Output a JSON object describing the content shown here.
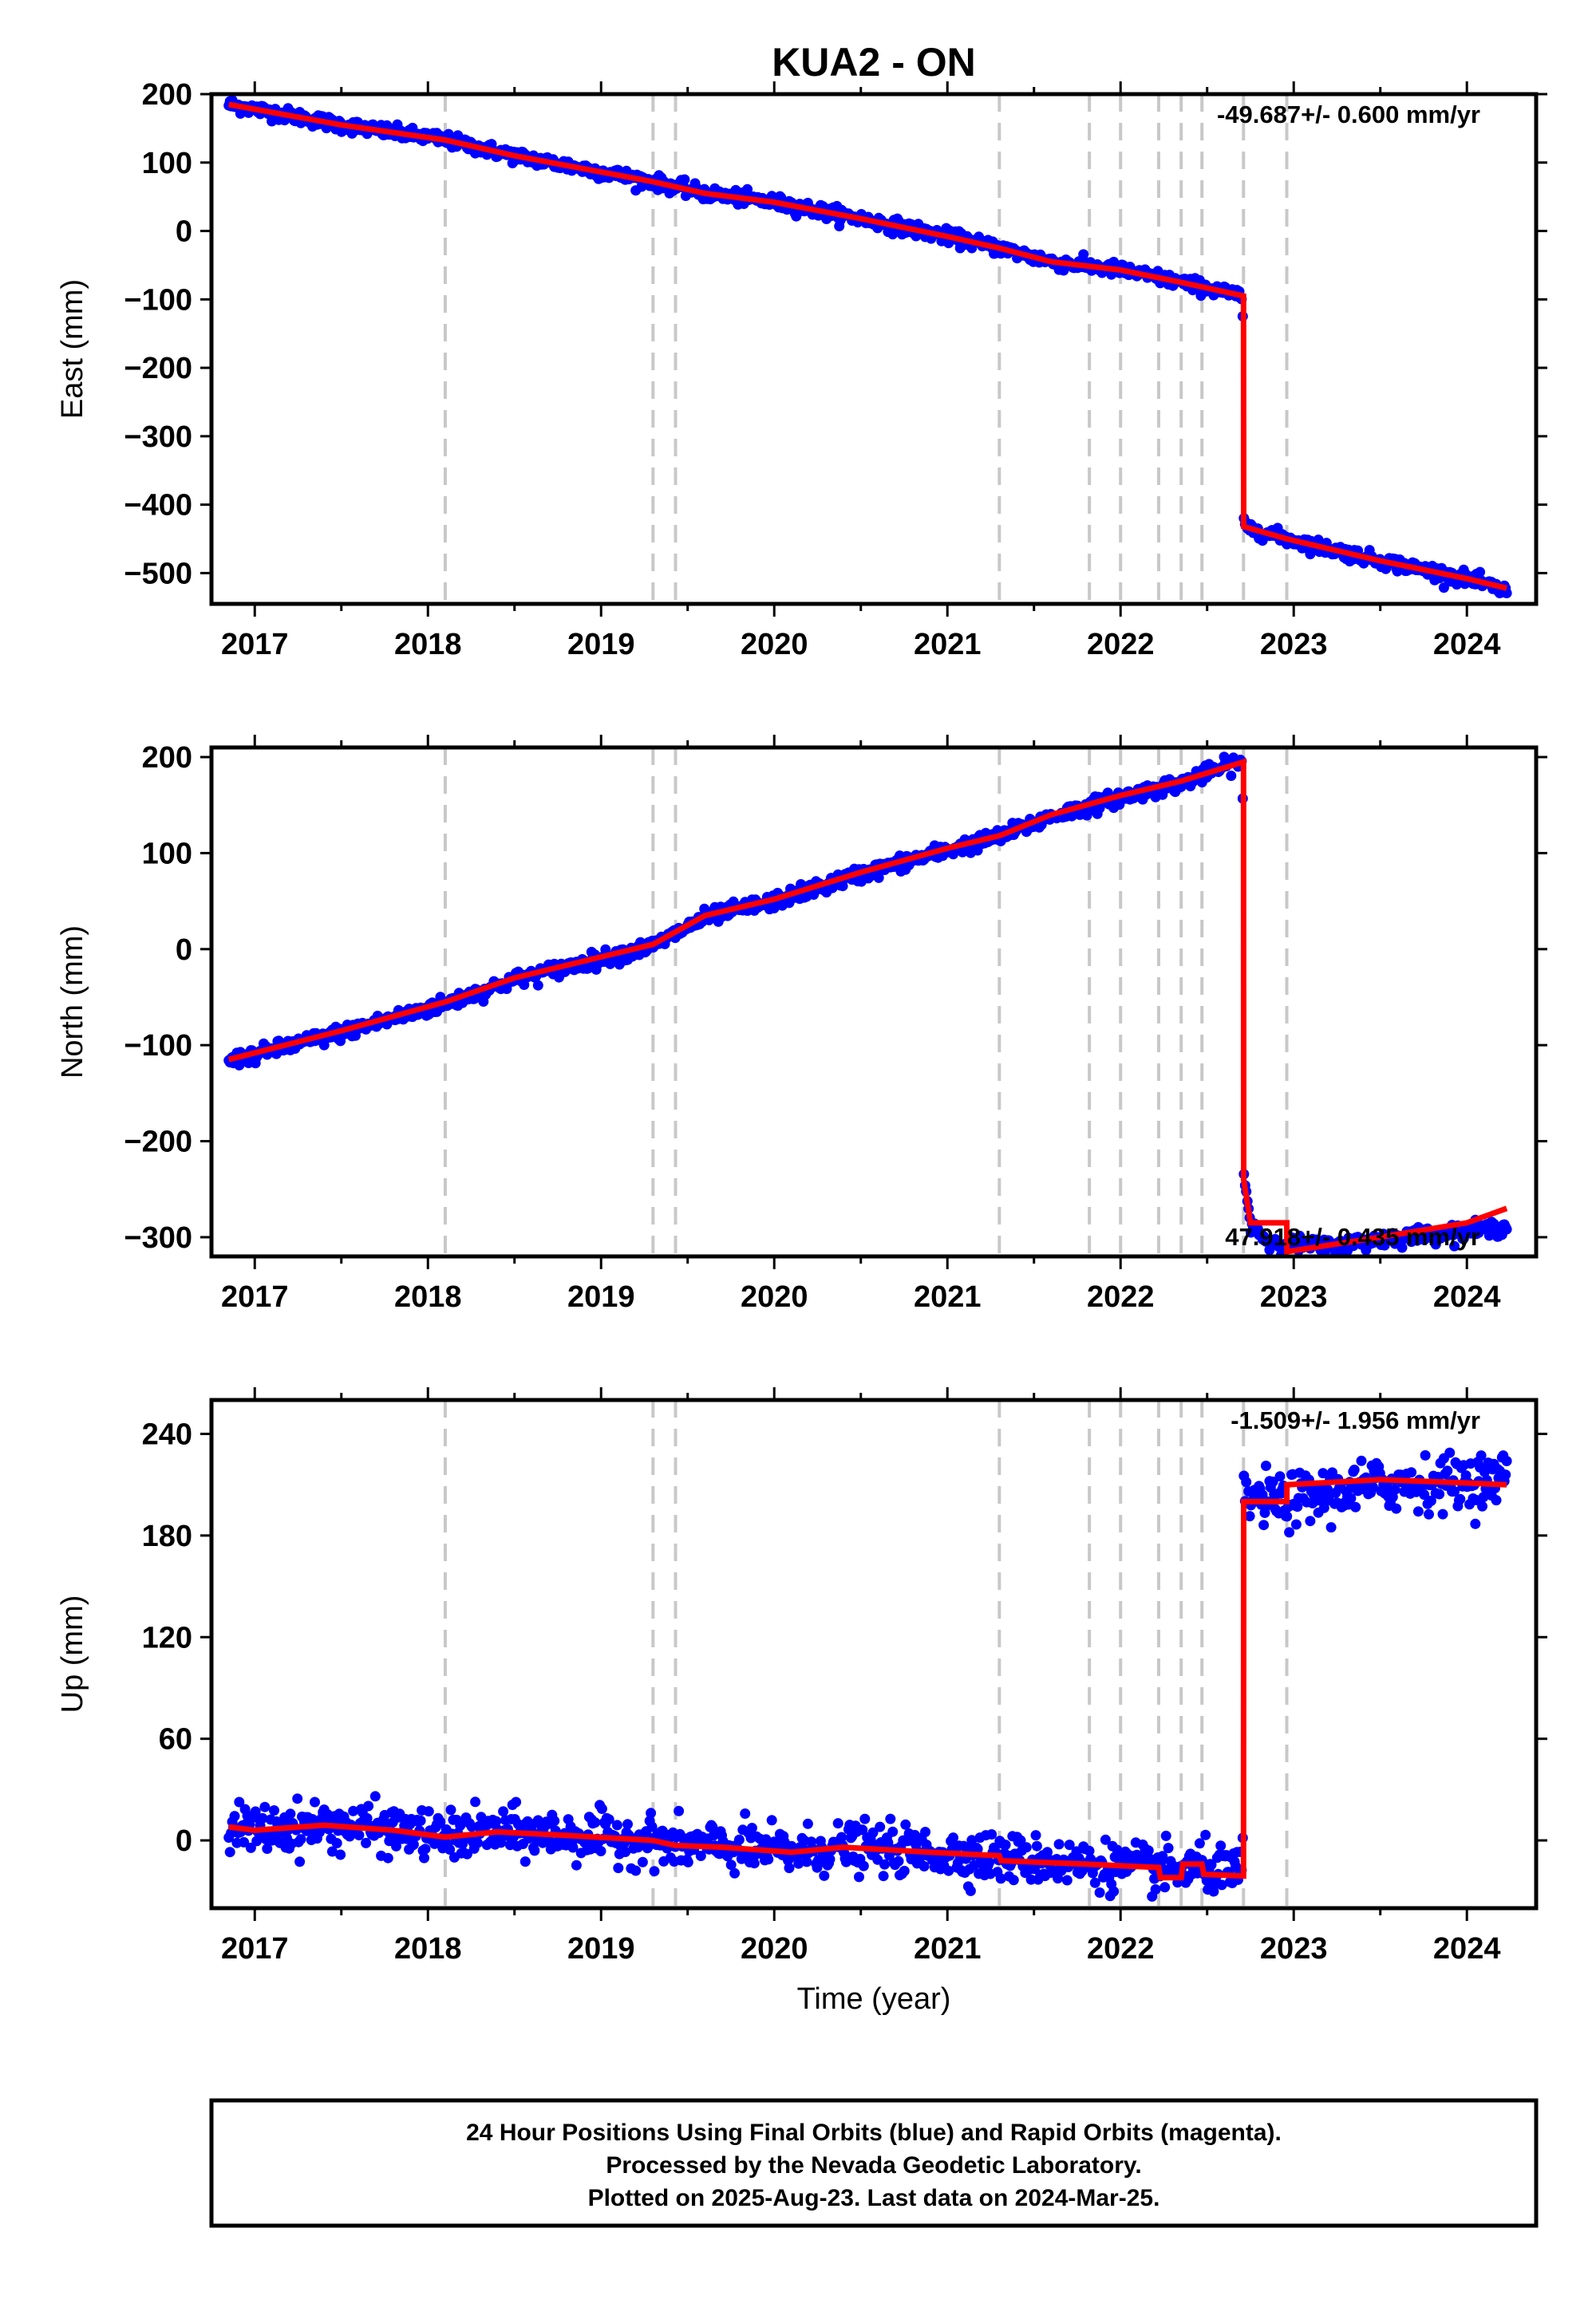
{
  "title": "KUA2 - ON",
  "xlabel": "Time (year)",
  "footer": {
    "line1": "24 Hour Positions Using Final Orbits (blue) and Rapid Orbits (magenta).",
    "line2": "Processed by the Nevada Geodetic Laboratory.",
    "line3": "Plotted on 2025-Aug-23. Last data on 2024-Mar-25."
  },
  "colors": {
    "data": "#0000ff",
    "model": "#ff0000",
    "offset_line": "#c8c8c8",
    "frame": "#000000"
  },
  "chart_data": [
    {
      "type": "scatter",
      "ylabel": "East (mm)",
      "rate_text": "-49.687+/- 0.600 mm/yr",
      "xlim": [
        2016.75,
        2024.4
      ],
      "ylim": [
        -545,
        200
      ],
      "yticks": [
        200,
        100,
        0,
        -100,
        -200,
        -300,
        -400,
        -500
      ],
      "xticks": [
        2017,
        2018,
        2019,
        2020,
        2021,
        2022,
        2023,
        2024
      ],
      "offset_lines": [
        2018.1,
        2019.3,
        2019.43,
        2021.3,
        2021.82,
        2022.0,
        2022.22,
        2022.35,
        2022.47,
        2022.71,
        2022.96
      ],
      "model": [
        [
          2016.85,
          185
        ],
        [
          2017.5,
          155
        ],
        [
          2018.1,
          133
        ],
        [
          2018.5,
          110
        ],
        [
          2019.3,
          72
        ],
        [
          2019.6,
          55
        ],
        [
          2020.0,
          42
        ],
        [
          2020.5,
          18
        ],
        [
          2021.0,
          -8
        ],
        [
          2021.3,
          -25
        ],
        [
          2021.6,
          -45
        ],
        [
          2022.0,
          -57
        ],
        [
          2022.35,
          -75
        ],
        [
          2022.71,
          -95
        ],
        [
          2022.711,
          -432
        ],
        [
          2022.96,
          -450
        ],
        [
          2023.5,
          -482
        ],
        [
          2024.0,
          -508
        ],
        [
          2024.23,
          -522
        ]
      ],
      "anchors": [
        [
          2016.85,
          185
        ],
        [
          2017.5,
          155
        ],
        [
          2018.1,
          133
        ],
        [
          2018.5,
          110
        ],
        [
          2019.3,
          72
        ],
        [
          2019.6,
          55
        ],
        [
          2020.0,
          42
        ],
        [
          2020.5,
          18
        ],
        [
          2021.0,
          -8
        ],
        [
          2021.3,
          -25
        ],
        [
          2021.6,
          -45
        ],
        [
          2022.0,
          -57
        ],
        [
          2022.35,
          -75
        ],
        [
          2022.705,
          -95
        ],
        [
          2022.712,
          -432
        ],
        [
          2022.96,
          -450
        ],
        [
          2023.5,
          -482
        ],
        [
          2024.0,
          -508
        ],
        [
          2024.23,
          -527
        ]
      ],
      "noise": 5
    },
    {
      "type": "scatter",
      "ylabel": "North (mm)",
      "rate_text": "47.918+/- 0.435 mm/yr",
      "xlim": [
        2016.75,
        2024.4
      ],
      "ylim": [
        -320,
        210
      ],
      "yticks": [
        200,
        100,
        0,
        -100,
        -200,
        -300
      ],
      "xticks": [
        2017,
        2018,
        2019,
        2020,
        2021,
        2022,
        2023,
        2024
      ],
      "offset_lines": [
        2018.1,
        2019.3,
        2019.43,
        2021.3,
        2021.82,
        2022.0,
        2022.22,
        2022.35,
        2022.47,
        2022.71,
        2022.96
      ],
      "model": [
        [
          2016.85,
          -115
        ],
        [
          2017.5,
          -85
        ],
        [
          2018.1,
          -55
        ],
        [
          2018.5,
          -30
        ],
        [
          2019.3,
          5
        ],
        [
          2019.6,
          35
        ],
        [
          2020.0,
          52
        ],
        [
          2020.5,
          80
        ],
        [
          2021.0,
          105
        ],
        [
          2021.3,
          118
        ],
        [
          2021.6,
          140
        ],
        [
          2022.0,
          160
        ],
        [
          2022.35,
          175
        ],
        [
          2022.71,
          195
        ],
        [
          2022.711,
          -240
        ],
        [
          2022.75,
          -285
        ],
        [
          2022.96,
          -285
        ],
        [
          2022.961,
          -315
        ],
        [
          2023.5,
          -300
        ],
        [
          2024.0,
          -285
        ],
        [
          2024.23,
          -270
        ]
      ],
      "anchors": [
        [
          2016.85,
          -117
        ],
        [
          2017.5,
          -87
        ],
        [
          2018.1,
          -57
        ],
        [
          2018.5,
          -32
        ],
        [
          2019.3,
          3
        ],
        [
          2019.6,
          33
        ],
        [
          2020.0,
          50
        ],
        [
          2020.5,
          78
        ],
        [
          2021.0,
          103
        ],
        [
          2021.3,
          117
        ],
        [
          2021.6,
          138
        ],
        [
          2022.0,
          158
        ],
        [
          2022.35,
          173
        ],
        [
          2022.705,
          197
        ],
        [
          2022.712,
          -240
        ],
        [
          2022.75,
          -285
        ],
        [
          2022.85,
          -305
        ],
        [
          2023.2,
          -310
        ],
        [
          2023.6,
          -300
        ],
        [
          2024.0,
          -293
        ],
        [
          2024.23,
          -290
        ]
      ],
      "noise": 4
    },
    {
      "type": "scatter",
      "ylabel": "Up (mm)",
      "rate_text": "-1.509+/- 1.956 mm/yr",
      "xlim": [
        2016.75,
        2024.4
      ],
      "ylim": [
        -40,
        260
      ],
      "yticks": [
        240,
        180,
        120,
        60,
        0
      ],
      "xticks": [
        2017,
        2018,
        2019,
        2020,
        2021,
        2022,
        2023,
        2024
      ],
      "offset_lines": [
        2018.1,
        2019.3,
        2019.43,
        2021.3,
        2021.82,
        2022.0,
        2022.22,
        2022.35,
        2022.47,
        2022.71,
        2022.96
      ],
      "model": [
        [
          2016.85,
          8
        ],
        [
          2017.0,
          6
        ],
        [
          2017.4,
          9
        ],
        [
          2017.8,
          6
        ],
        [
          2018.1,
          2
        ],
        [
          2018.4,
          5
        ],
        [
          2018.8,
          3
        ],
        [
          2019.3,
          0
        ],
        [
          2019.43,
          -3
        ],
        [
          2019.7,
          -4
        ],
        [
          2020.1,
          -7
        ],
        [
          2020.4,
          -4
        ],
        [
          2020.9,
          -7
        ],
        [
          2021.3,
          -9
        ],
        [
          2021.31,
          -12
        ],
        [
          2021.8,
          -14
        ],
        [
          2022.22,
          -16
        ],
        [
          2022.23,
          -22
        ],
        [
          2022.35,
          -22
        ],
        [
          2022.36,
          -14
        ],
        [
          2022.47,
          -14
        ],
        [
          2022.48,
          -20
        ],
        [
          2022.71,
          -21
        ],
        [
          2022.711,
          200
        ],
        [
          2022.96,
          200
        ],
        [
          2022.961,
          210
        ],
        [
          2023.5,
          213
        ],
        [
          2024.0,
          211
        ],
        [
          2024.23,
          210
        ]
      ],
      "anchors": [
        [
          2016.85,
          8
        ],
        [
          2017.0,
          6
        ],
        [
          2017.4,
          9
        ],
        [
          2017.8,
          6
        ],
        [
          2018.1,
          2
        ],
        [
          2018.4,
          5
        ],
        [
          2018.8,
          3
        ],
        [
          2019.3,
          0
        ],
        [
          2019.43,
          -3
        ],
        [
          2019.7,
          -4
        ],
        [
          2020.1,
          -7
        ],
        [
          2020.4,
          -4
        ],
        [
          2020.9,
          -7
        ],
        [
          2021.3,
          -10
        ],
        [
          2021.8,
          -14
        ],
        [
          2022.22,
          -17
        ],
        [
          2022.35,
          -18
        ],
        [
          2022.47,
          -16
        ],
        [
          2022.705,
          -20
        ],
        [
          2022.712,
          202
        ],
        [
          2022.96,
          200
        ],
        [
          2023.5,
          210
        ],
        [
          2024.0,
          212
        ],
        [
          2024.23,
          214
        ]
      ],
      "noise": 7
    }
  ]
}
